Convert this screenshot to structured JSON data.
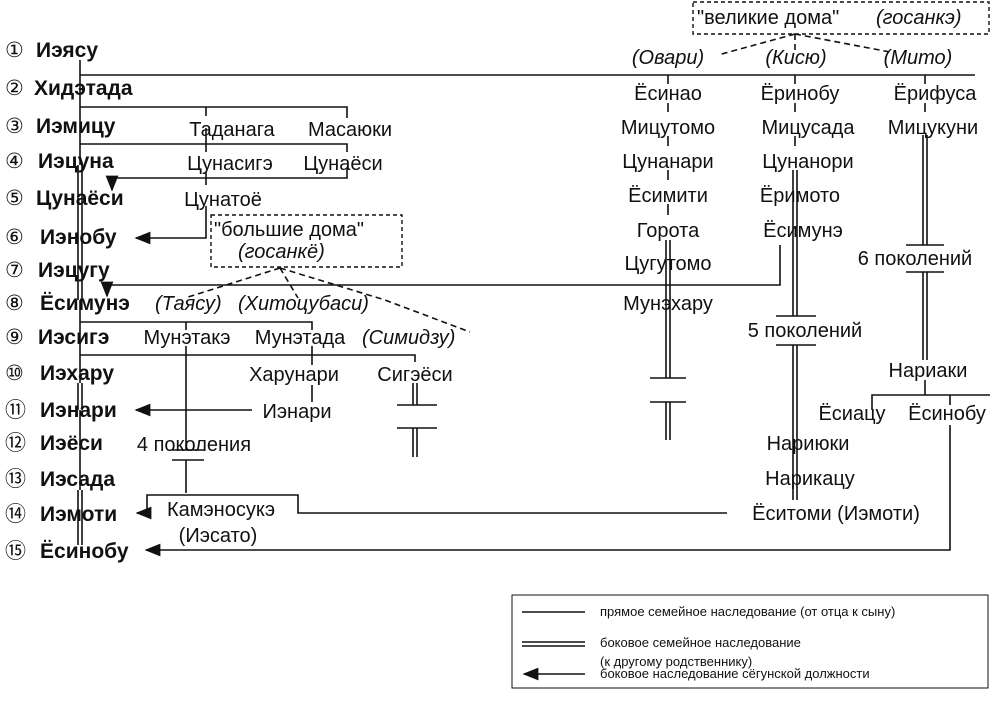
{
  "shoguns": [
    {
      "num": "①",
      "name": "Иэясу"
    },
    {
      "num": "②",
      "name": "Хидэтада"
    },
    {
      "num": "③",
      "name": "Иэмицу"
    },
    {
      "num": "④",
      "name": "Иэцуна"
    },
    {
      "num": "⑤",
      "name": "Цунаёси"
    },
    {
      "num": "⑥",
      "name": "Иэнобу"
    },
    {
      "num": "⑦",
      "name": "Иэцугу"
    },
    {
      "num": "⑧",
      "name": "Ёсимунэ"
    },
    {
      "num": "⑨",
      "name": "Иэсигэ"
    },
    {
      "num": "⑩",
      "name": "Иэхару"
    },
    {
      "num": "⑪",
      "name": "Иэнари"
    },
    {
      "num": "⑫",
      "name": "Иэёси"
    },
    {
      "num": "⑬",
      "name": "Иэсада"
    },
    {
      "num": "⑭",
      "name": "Иэмоти"
    },
    {
      "num": "⑮",
      "name": "Ёсинобу"
    }
  ],
  "branches": {
    "tadanaga": "Таданага",
    "masayuki": "Масаюки",
    "tsunashige": "Цунасигэ",
    "tsunayoshi": "Цунаёси",
    "tsunatoyo": "Цунатоё",
    "munetake": "Мунэтакэ",
    "munetada": "Мунэтада",
    "shimizu": "(Симидзу)",
    "harunari": "Харунари",
    "shigeyoshi": "Сигэёси",
    "ienari": "Иэнари",
    "gen4": "4 поколения",
    "kamenosuke": "Камэносукэ",
    "iesato": "(Иэсато)"
  },
  "sankyo": {
    "title": "\"большие дома\"",
    "sub": "(госанкё)",
    "tayasu": "(Таясу)",
    "hitotsubashi": "(Хитоцубаси)"
  },
  "sanke": {
    "title": "\"великие дома\"",
    "sub": "(госанкэ)",
    "owari": "(Овари)",
    "kishu": "(Кисю)",
    "mito": "(Мито)"
  },
  "owari": [
    "Ёсинао",
    "Мицутомо",
    "Цунанари",
    "Ёсимити",
    "Горота",
    "Цугутомо",
    "Мунэхару"
  ],
  "kishu": {
    "names": [
      "Ёринобу",
      "Мицусада",
      "Цунанори",
      "Ёримото",
      "Ёсимунэ"
    ],
    "gen5": "5 поколений",
    "late": [
      "Нариюки",
      "Нарикацу",
      "Ёситоми (Иэмоти)"
    ]
  },
  "mito": {
    "names": [
      "Ёрифуса",
      "Мицукуни"
    ],
    "gen6": "6 поколений",
    "nariaki": "Нариаки",
    "yoshiatsu": "Ёсиацу",
    "yoshinobu": "Ёсинобу"
  },
  "legend": {
    "direct": "прямое семейное наследование (от отца к сыну)",
    "collateral1": "боковое семейное наследование",
    "collateral2": "(к другому родственнику)",
    "shogunal": "боковое наследование сёгунской должности"
  }
}
